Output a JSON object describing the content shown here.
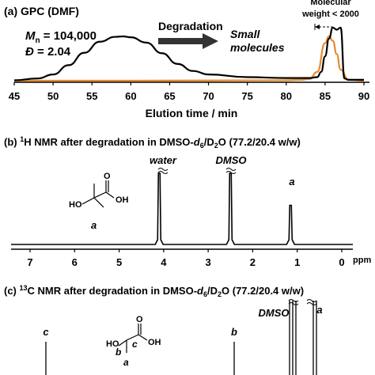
{
  "colors": {
    "black_trace": "#000000",
    "orange_trace": "#E8892B",
    "accent_text": "#E8892B"
  },
  "panel_a": {
    "title": "(a) GPC (DMF)",
    "mn_label": "M",
    "mn_sub": "n",
    "mn_value": " = 104,000",
    "disp_label": "Đ",
    "disp_value": " = 2.04",
    "arrow_label": "Degradation",
    "small_1": "Small",
    "small_2": "molecules",
    "mw_1": "Molecular",
    "mw_2": "weight < 2000",
    "xlabel": "Elution time / min"
  },
  "panel_b": {
    "title_pre": "(b) ",
    "title_sup": "1",
    "title_mid": "H NMR after degradation in DMSO-",
    "title_d": "d",
    "title_6": "6",
    "title_slash": "/D",
    "title_2": "2",
    "title_post": "O (77.2/20.4 w/w)",
    "peak_water": "water",
    "peak_dmso": "DMSO",
    "peak_a": "a",
    "mol_ho": "HO",
    "mol_oh": "OH",
    "mol_o": "O",
    "mol_a": "a",
    "unit": "ppm"
  },
  "panel_c": {
    "title_pre": "(c) ",
    "title_sup": "13",
    "title_mid": "C NMR after degradation in DMSO-",
    "title_d": "d",
    "title_6": "6",
    "title_slash": "/D",
    "title_2": "2",
    "title_post": "O (77.2/20.4 w/w)",
    "peak_c": "c",
    "peak_b": "b",
    "peak_a": "a",
    "peak_dmso": "DMSO",
    "mol_ho": "HO",
    "mol_oh": "OH",
    "mol_o": "O",
    "mol_a": "a",
    "mol_b": "b",
    "mol_c": "c"
  },
  "chart_data": [
    {
      "type": "line",
      "title": "(a) GPC (DMF)",
      "xlabel": "Elution time / min",
      "xlim": [
        45,
        90
      ],
      "x_ticks": [
        "45",
        "50",
        "55",
        "60",
        "65",
        "70",
        "75",
        "80",
        "85",
        "90"
      ],
      "series": [
        {
          "color": "#000000",
          "x": [
            45,
            48,
            50,
            52,
            54,
            56,
            58,
            59,
            60,
            62,
            64,
            66,
            68,
            70,
            75,
            80,
            83,
            84,
            84.5,
            85,
            85.5,
            86,
            86.5,
            87,
            87.5,
            88,
            90
          ],
          "y": [
            0.01,
            0.05,
            0.14,
            0.35,
            0.63,
            0.88,
            0.99,
            1.0,
            0.98,
            0.86,
            0.62,
            0.38,
            0.22,
            0.14,
            0.08,
            0.06,
            0.06,
            0.08,
            0.2,
            0.55,
            0.95,
            1.2,
            1.15,
            1.2,
            0.05,
            0.02,
            0.02
          ]
        },
        {
          "color": "#E8892B",
          "x": [
            45,
            60,
            70,
            80,
            82,
            83,
            84,
            85,
            85.5,
            86,
            86.5,
            87,
            88,
            90
          ],
          "y": [
            0.0,
            0.0,
            0.005,
            0.01,
            0.02,
            0.04,
            0.2,
            0.85,
            1.0,
            0.9,
            0.6,
            0.25,
            0.02,
            0.0
          ]
        }
      ]
    },
    {
      "type": "line",
      "title": "1H NMR after degradation in DMSO-d6/D2O (77.2/20.4 w/w)",
      "xlabel": "ppm",
      "xlim": [
        7.5,
        0
      ],
      "x_ticks": [
        "7",
        "6",
        "5",
        "4",
        "3",
        "2",
        "1",
        "0"
      ],
      "peaks": [
        {
          "label": "water",
          "ppm": 4.1,
          "height": 1.0
        },
        {
          "label": "DMSO",
          "ppm": 2.5,
          "height": 1.0
        },
        {
          "label": "a",
          "ppm": 1.15,
          "height": 0.55
        }
      ]
    },
    {
      "type": "line",
      "title": "13C NMR after degradation in DMSO-d6/D2O (77.2/20.4 w/w)",
      "peaks": [
        {
          "label": "c"
        },
        {
          "label": "b"
        },
        {
          "label": "DMSO"
        },
        {
          "label": "a"
        }
      ]
    }
  ]
}
